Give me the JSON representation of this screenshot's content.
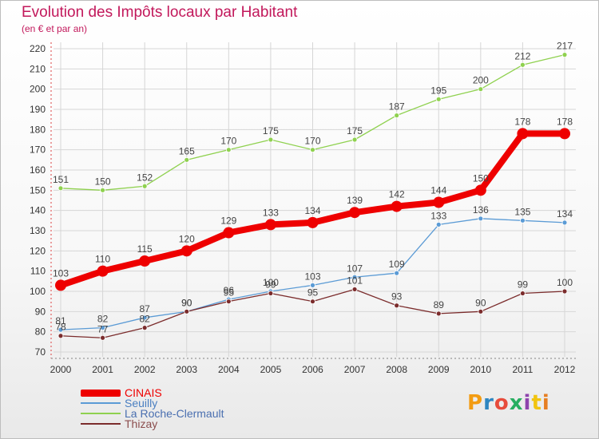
{
  "header": {
    "title": "Evolution des Impôts locaux par Habitant",
    "subtitle": "(en € et par an)"
  },
  "logo": {
    "text": "Proxiti",
    "colors": [
      "#f39c12",
      "#2e86c1",
      "#e74c3c",
      "#27ae60",
      "#8e44ad",
      "#f1c40f",
      "#e67e22"
    ]
  },
  "chart_data": {
    "type": "line",
    "title": "Evolution des Impôts locaux par Habitant",
    "subtitle": "(en € et par an)",
    "x": [
      "2000",
      "2001",
      "2002",
      "2003",
      "2004",
      "2005",
      "2006",
      "2007",
      "2008",
      "2009",
      "2010",
      "2011",
      "2012"
    ],
    "ylim": [
      70,
      220
    ],
    "yticks": [
      70,
      80,
      90,
      100,
      110,
      120,
      130,
      140,
      150,
      160,
      170,
      180,
      190,
      200,
      210,
      220
    ],
    "grid": true,
    "legend_position": "bottom-left",
    "series": [
      {
        "name": "CINAIS",
        "color": "#ee0000",
        "values": [
          103,
          110,
          115,
          120,
          129,
          133,
          134,
          139,
          142,
          144,
          150,
          178,
          178
        ]
      },
      {
        "name": "Seuilly",
        "color": "#5b9bd5",
        "values": [
          81,
          82,
          87,
          90,
          96,
          100,
          103,
          107,
          109,
          133,
          136,
          135,
          134
        ]
      },
      {
        "name": "La Roche-Clermault",
        "color": "#8fd14f",
        "values": [
          151,
          150,
          152,
          165,
          170,
          175,
          170,
          175,
          187,
          195,
          200,
          212,
          217
        ]
      },
      {
        "name": "Thizay",
        "color": "#7b2c2c",
        "values": [
          78,
          77,
          82,
          90,
          95,
          99,
          95,
          101,
          93,
          89,
          90,
          99,
          100
        ]
      }
    ]
  }
}
